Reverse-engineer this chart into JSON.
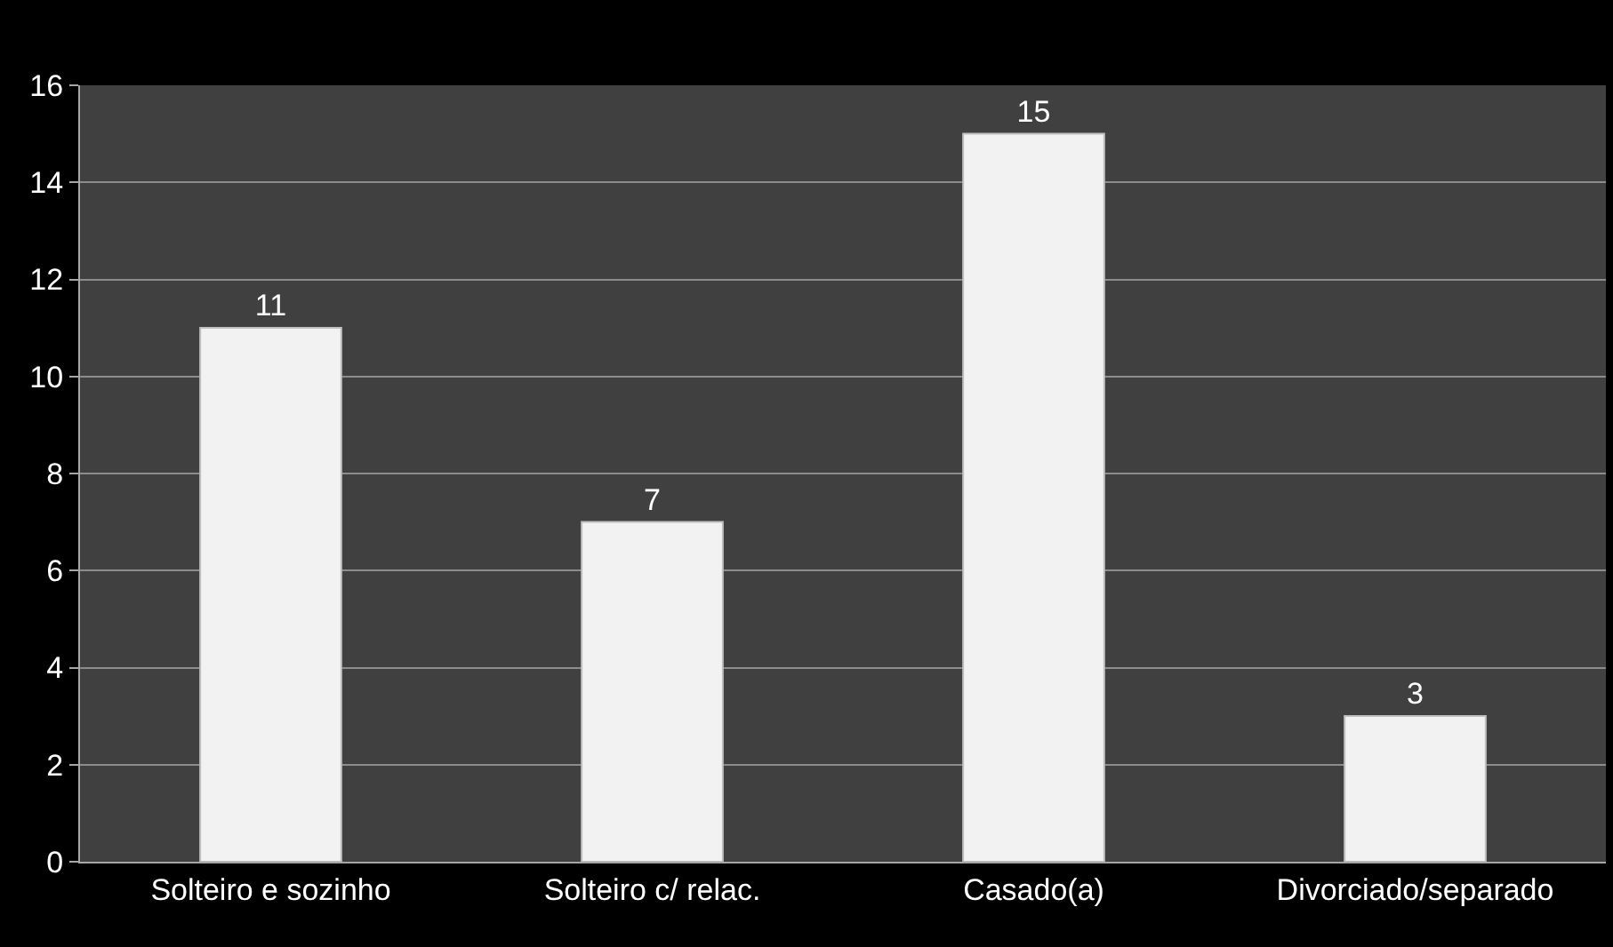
{
  "chart_data": {
    "type": "bar",
    "categories": [
      "Solteiro e sozinho",
      "Solteiro c/ relac.",
      "Casado(a)",
      "Divorciado/separado"
    ],
    "values": [
      11,
      7,
      15,
      3
    ],
    "color": "#f2f2f2",
    "ylim": [
      0,
      16
    ],
    "yticks": [
      0,
      2,
      4,
      6,
      8,
      10,
      12,
      14,
      16
    ],
    "grid": "y",
    "data_labels": true,
    "legend": false
  }
}
